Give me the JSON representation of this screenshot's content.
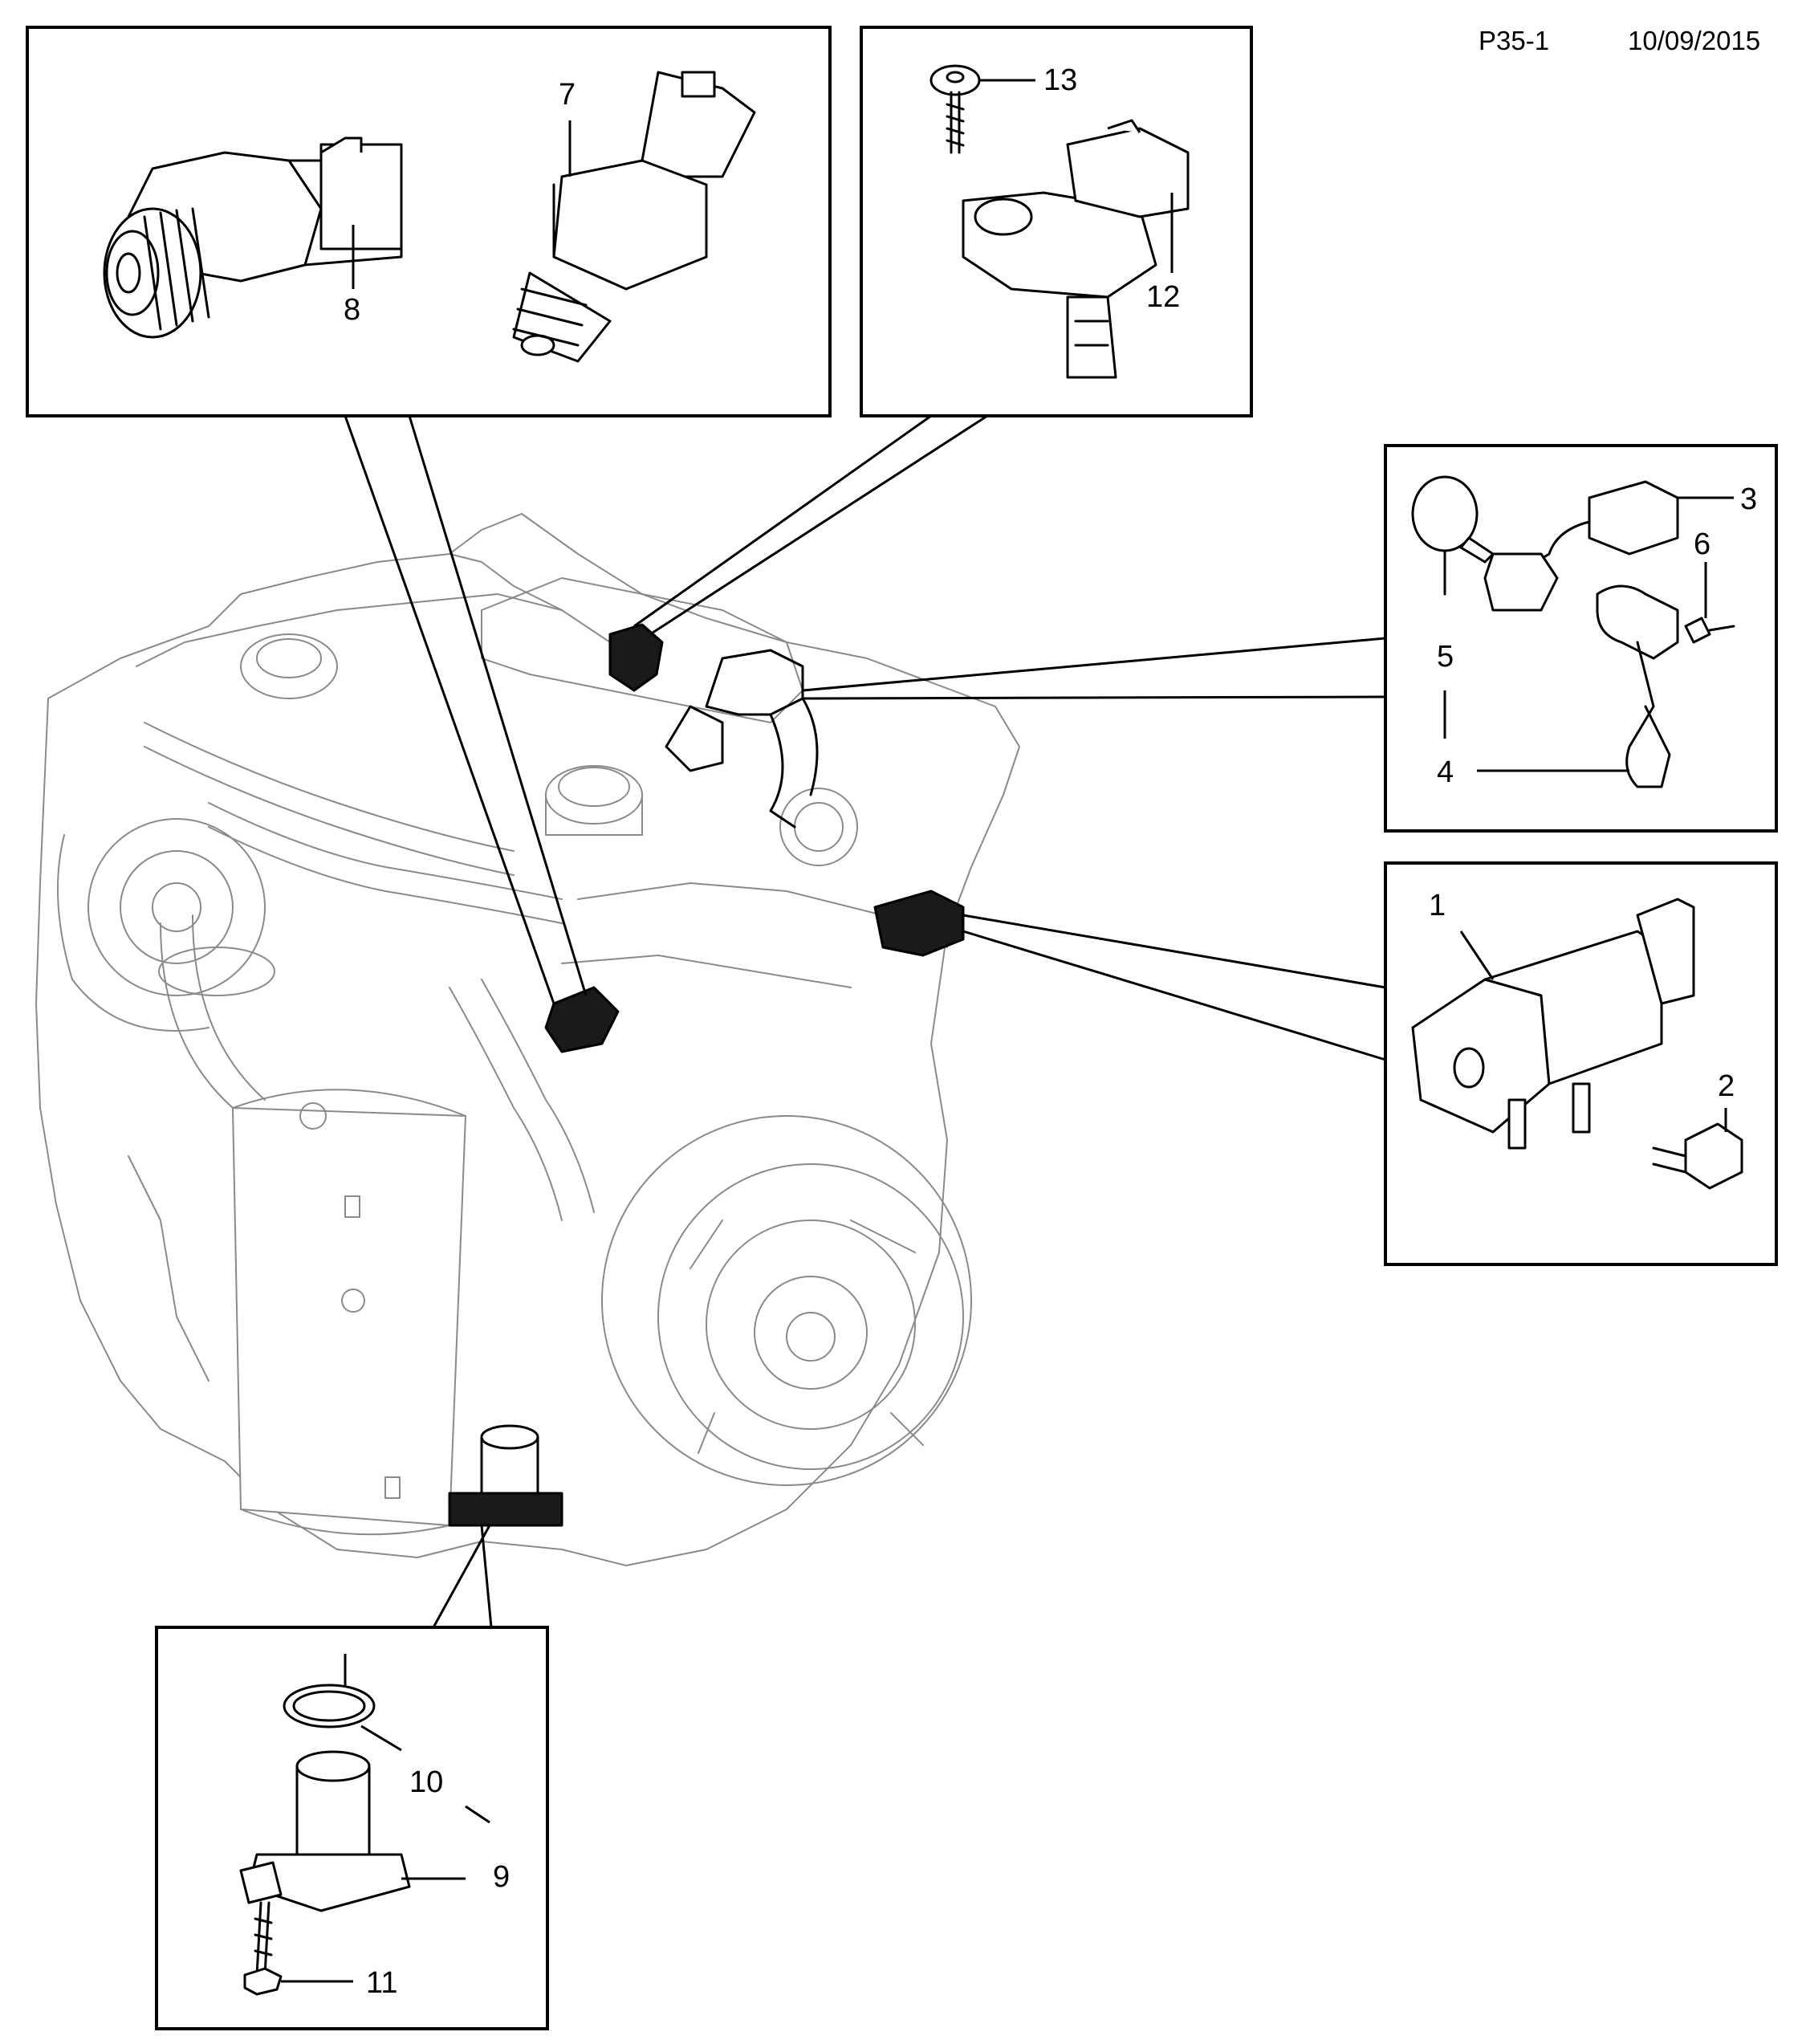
{
  "header": {
    "page_code": "P35-1",
    "date": "10/09/2015"
  },
  "callouts": {
    "c1": "1",
    "c2": "2",
    "c3": "3",
    "c4": "4",
    "c5": "5",
    "c6": "6",
    "c7": "7",
    "c8": "8",
    "c9": "9",
    "c10": "10",
    "c11": "11",
    "c12": "12",
    "c13": "13"
  }
}
